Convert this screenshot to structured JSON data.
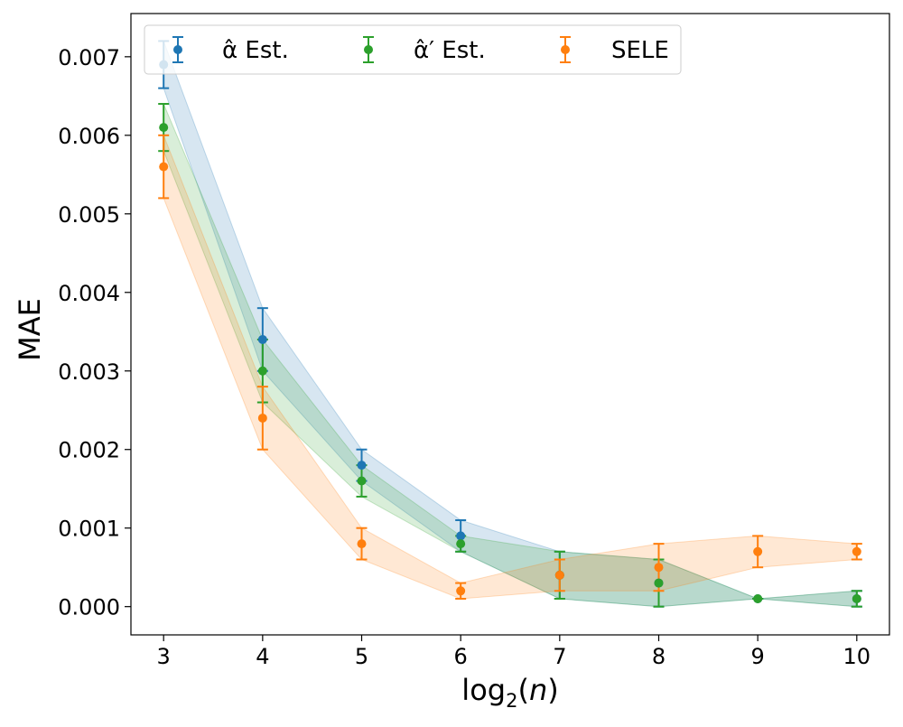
{
  "chart_data": {
    "type": "line",
    "title": "",
    "xlabel": "log₂(n)",
    "ylabel": "MAE",
    "x": [
      3,
      4,
      5,
      6,
      7,
      8,
      9,
      10
    ],
    "xlim": [
      2.67,
      10.33
    ],
    "ylim": [
      -0.00036,
      0.00755
    ],
    "xticks": [
      "3",
      "4",
      "5",
      "6",
      "7",
      "8",
      "9",
      "10"
    ],
    "yticks": [
      "0.000",
      "0.001",
      "0.002",
      "0.003",
      "0.004",
      "0.005",
      "0.006",
      "0.007"
    ],
    "grid": false,
    "legend_position": "top",
    "series": [
      {
        "name": "α̂ Est.",
        "color": "#1f77b4",
        "values": [
          0.0069,
          0.0034,
          0.0018,
          0.0009,
          0.0004,
          0.0003,
          0.0001,
          0.0001
        ],
        "error_low": [
          0.0066,
          0.003,
          0.0016,
          0.0007,
          0.0001,
          0.0,
          0.0001,
          0.0
        ],
        "error_high": [
          0.0072,
          0.0038,
          0.002,
          0.0011,
          0.0007,
          0.0006,
          0.0001,
          0.0002
        ]
      },
      {
        "name": "α̂′ Est.",
        "color": "#2ca02c",
        "values": [
          0.0061,
          0.003,
          0.0016,
          0.0008,
          0.0004,
          0.0003,
          0.0001,
          0.0001
        ],
        "error_low": [
          0.0058,
          0.0026,
          0.0014,
          0.0007,
          0.0001,
          0.0,
          0.0001,
          0.0
        ],
        "error_high": [
          0.0064,
          0.0034,
          0.0018,
          0.0009,
          0.0007,
          0.0006,
          0.0001,
          0.0002
        ]
      },
      {
        "name": "SELE",
        "color": "#ff7f0e",
        "values": [
          0.0056,
          0.0024,
          0.0008,
          0.0002,
          0.0004,
          0.0005,
          0.0007,
          0.0007
        ],
        "error_low": [
          0.0052,
          0.002,
          0.0006,
          0.0001,
          0.0002,
          0.0002,
          0.0005,
          0.0006
        ],
        "error_high": [
          0.006,
          0.0028,
          0.001,
          0.0003,
          0.0006,
          0.0008,
          0.0009,
          0.0008
        ]
      }
    ]
  },
  "legend": {
    "labels": [
      "α̂ Est.",
      "α̂′ Est.",
      "SELE"
    ]
  }
}
